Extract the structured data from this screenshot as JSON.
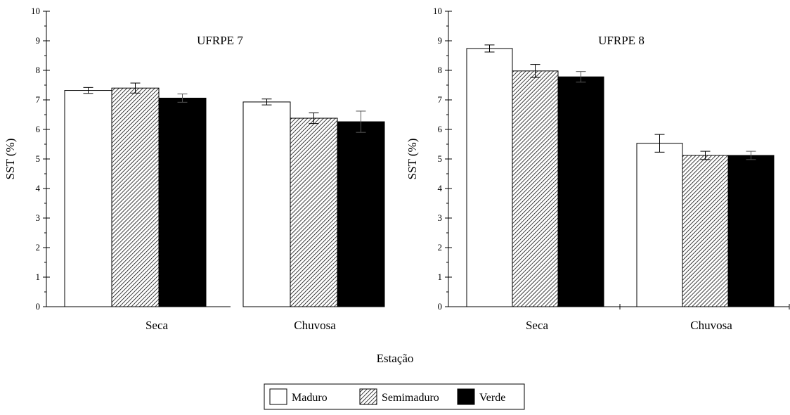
{
  "chart_data": [
    {
      "type": "bar",
      "title": "UFRPE 7",
      "xlabel": "",
      "ylabel": "SST (%)",
      "ylim": [
        0,
        10
      ],
      "yticks": [
        0,
        1,
        2,
        3,
        4,
        5,
        6,
        7,
        8,
        9,
        10
      ],
      "categories": [
        "Seca",
        "Chuvosa"
      ],
      "series": [
        {
          "name": "Maduro",
          "values": [
            7.32,
            6.93
          ],
          "errors": [
            0.1,
            0.1
          ]
        },
        {
          "name": "Semimaduro",
          "values": [
            7.4,
            6.38
          ],
          "errors": [
            0.17,
            0.18
          ]
        },
        {
          "name": "Verde",
          "values": [
            7.06,
            6.26
          ],
          "errors": [
            0.14,
            0.36
          ]
        }
      ],
      "grid": false
    },
    {
      "type": "bar",
      "title": "UFRPE 8",
      "xlabel": "",
      "ylabel": "SST (%)",
      "ylim": [
        0,
        10
      ],
      "yticks": [
        0,
        1,
        2,
        3,
        4,
        5,
        6,
        7,
        8,
        9,
        10
      ],
      "categories": [
        "Seca",
        "Chuvosa"
      ],
      "series": [
        {
          "name": "Maduro",
          "values": [
            8.74,
            5.53
          ],
          "errors": [
            0.12,
            0.3
          ]
        },
        {
          "name": "Semimaduro",
          "values": [
            7.98,
            5.12
          ],
          "errors": [
            0.22,
            0.14
          ]
        },
        {
          "name": "Verde",
          "values": [
            7.78,
            5.12
          ],
          "errors": [
            0.18,
            0.14
          ]
        }
      ],
      "grid": false
    }
  ],
  "shared_xlabel": "Estação",
  "legend": {
    "position": "bottom-center",
    "items": [
      {
        "label": "Maduro",
        "fill": "#ffffff"
      },
      {
        "label": "Semimaduro",
        "fill": "hatch"
      },
      {
        "label": "Verde",
        "fill": "#000000"
      }
    ]
  }
}
